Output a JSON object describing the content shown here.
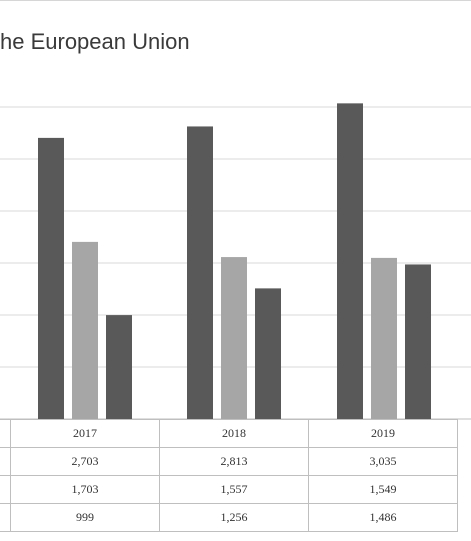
{
  "chart_data": {
    "type": "bar",
    "title": "he European Union",
    "categories": [
      "2017",
      "2018",
      "2019"
    ],
    "series": [
      {
        "values": [
          2703,
          2813,
          3035
        ],
        "color": "#595959"
      },
      {
        "values": [
          1703,
          1557,
          1549
        ],
        "color": "#a6a6a6"
      },
      {
        "values": [
          999,
          1256,
          1486
        ],
        "color": "#595959"
      }
    ],
    "table": {
      "rows": [
        [
          "2,703",
          "2,813",
          "3,035"
        ],
        [
          "1,703",
          "1,557",
          "1,549"
        ],
        [
          "999",
          "1,256",
          "1,486"
        ]
      ]
    },
    "ylim": [
      0,
      3250
    ],
    "grid": true,
    "legend": "none"
  }
}
